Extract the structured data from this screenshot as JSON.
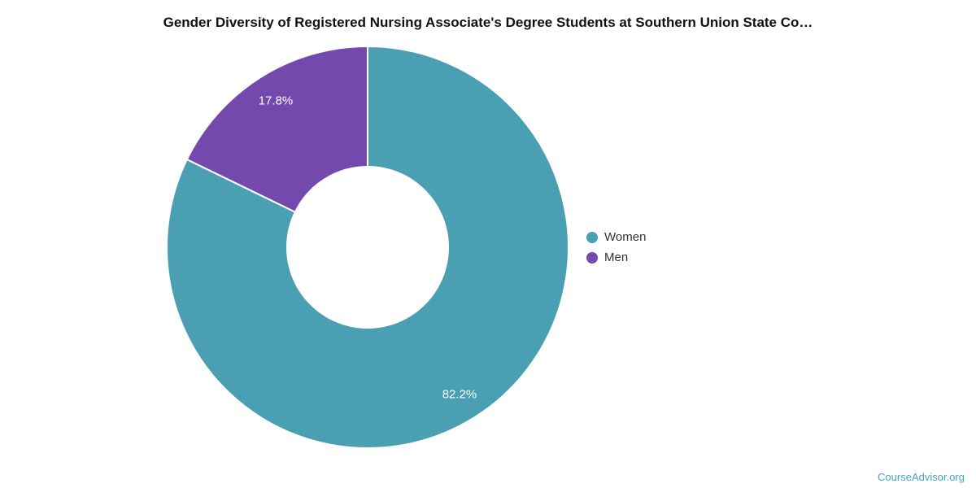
{
  "watermark": {
    "text": "CourseAdvisor.org",
    "color": "#46a2c6"
  },
  "chart_data": {
    "type": "pie",
    "subtype": "donut",
    "title": "Gender Diversity of Registered Nursing Associate's Degree Students at Southern Union State Co…",
    "start_angle_deg": 0,
    "direction": "clockwise",
    "inner_radius_ratio": 0.4,
    "legend_position": "right",
    "slice_border_color": "#ffffff",
    "data_label_color": "#ffffff",
    "segments": [
      {
        "label": "Women",
        "value": 82.2,
        "display": "82.2%",
        "color": "#4aa0b2"
      },
      {
        "label": "Men",
        "value": 17.8,
        "display": "17.8%",
        "color": "#7349ae"
      }
    ]
  }
}
